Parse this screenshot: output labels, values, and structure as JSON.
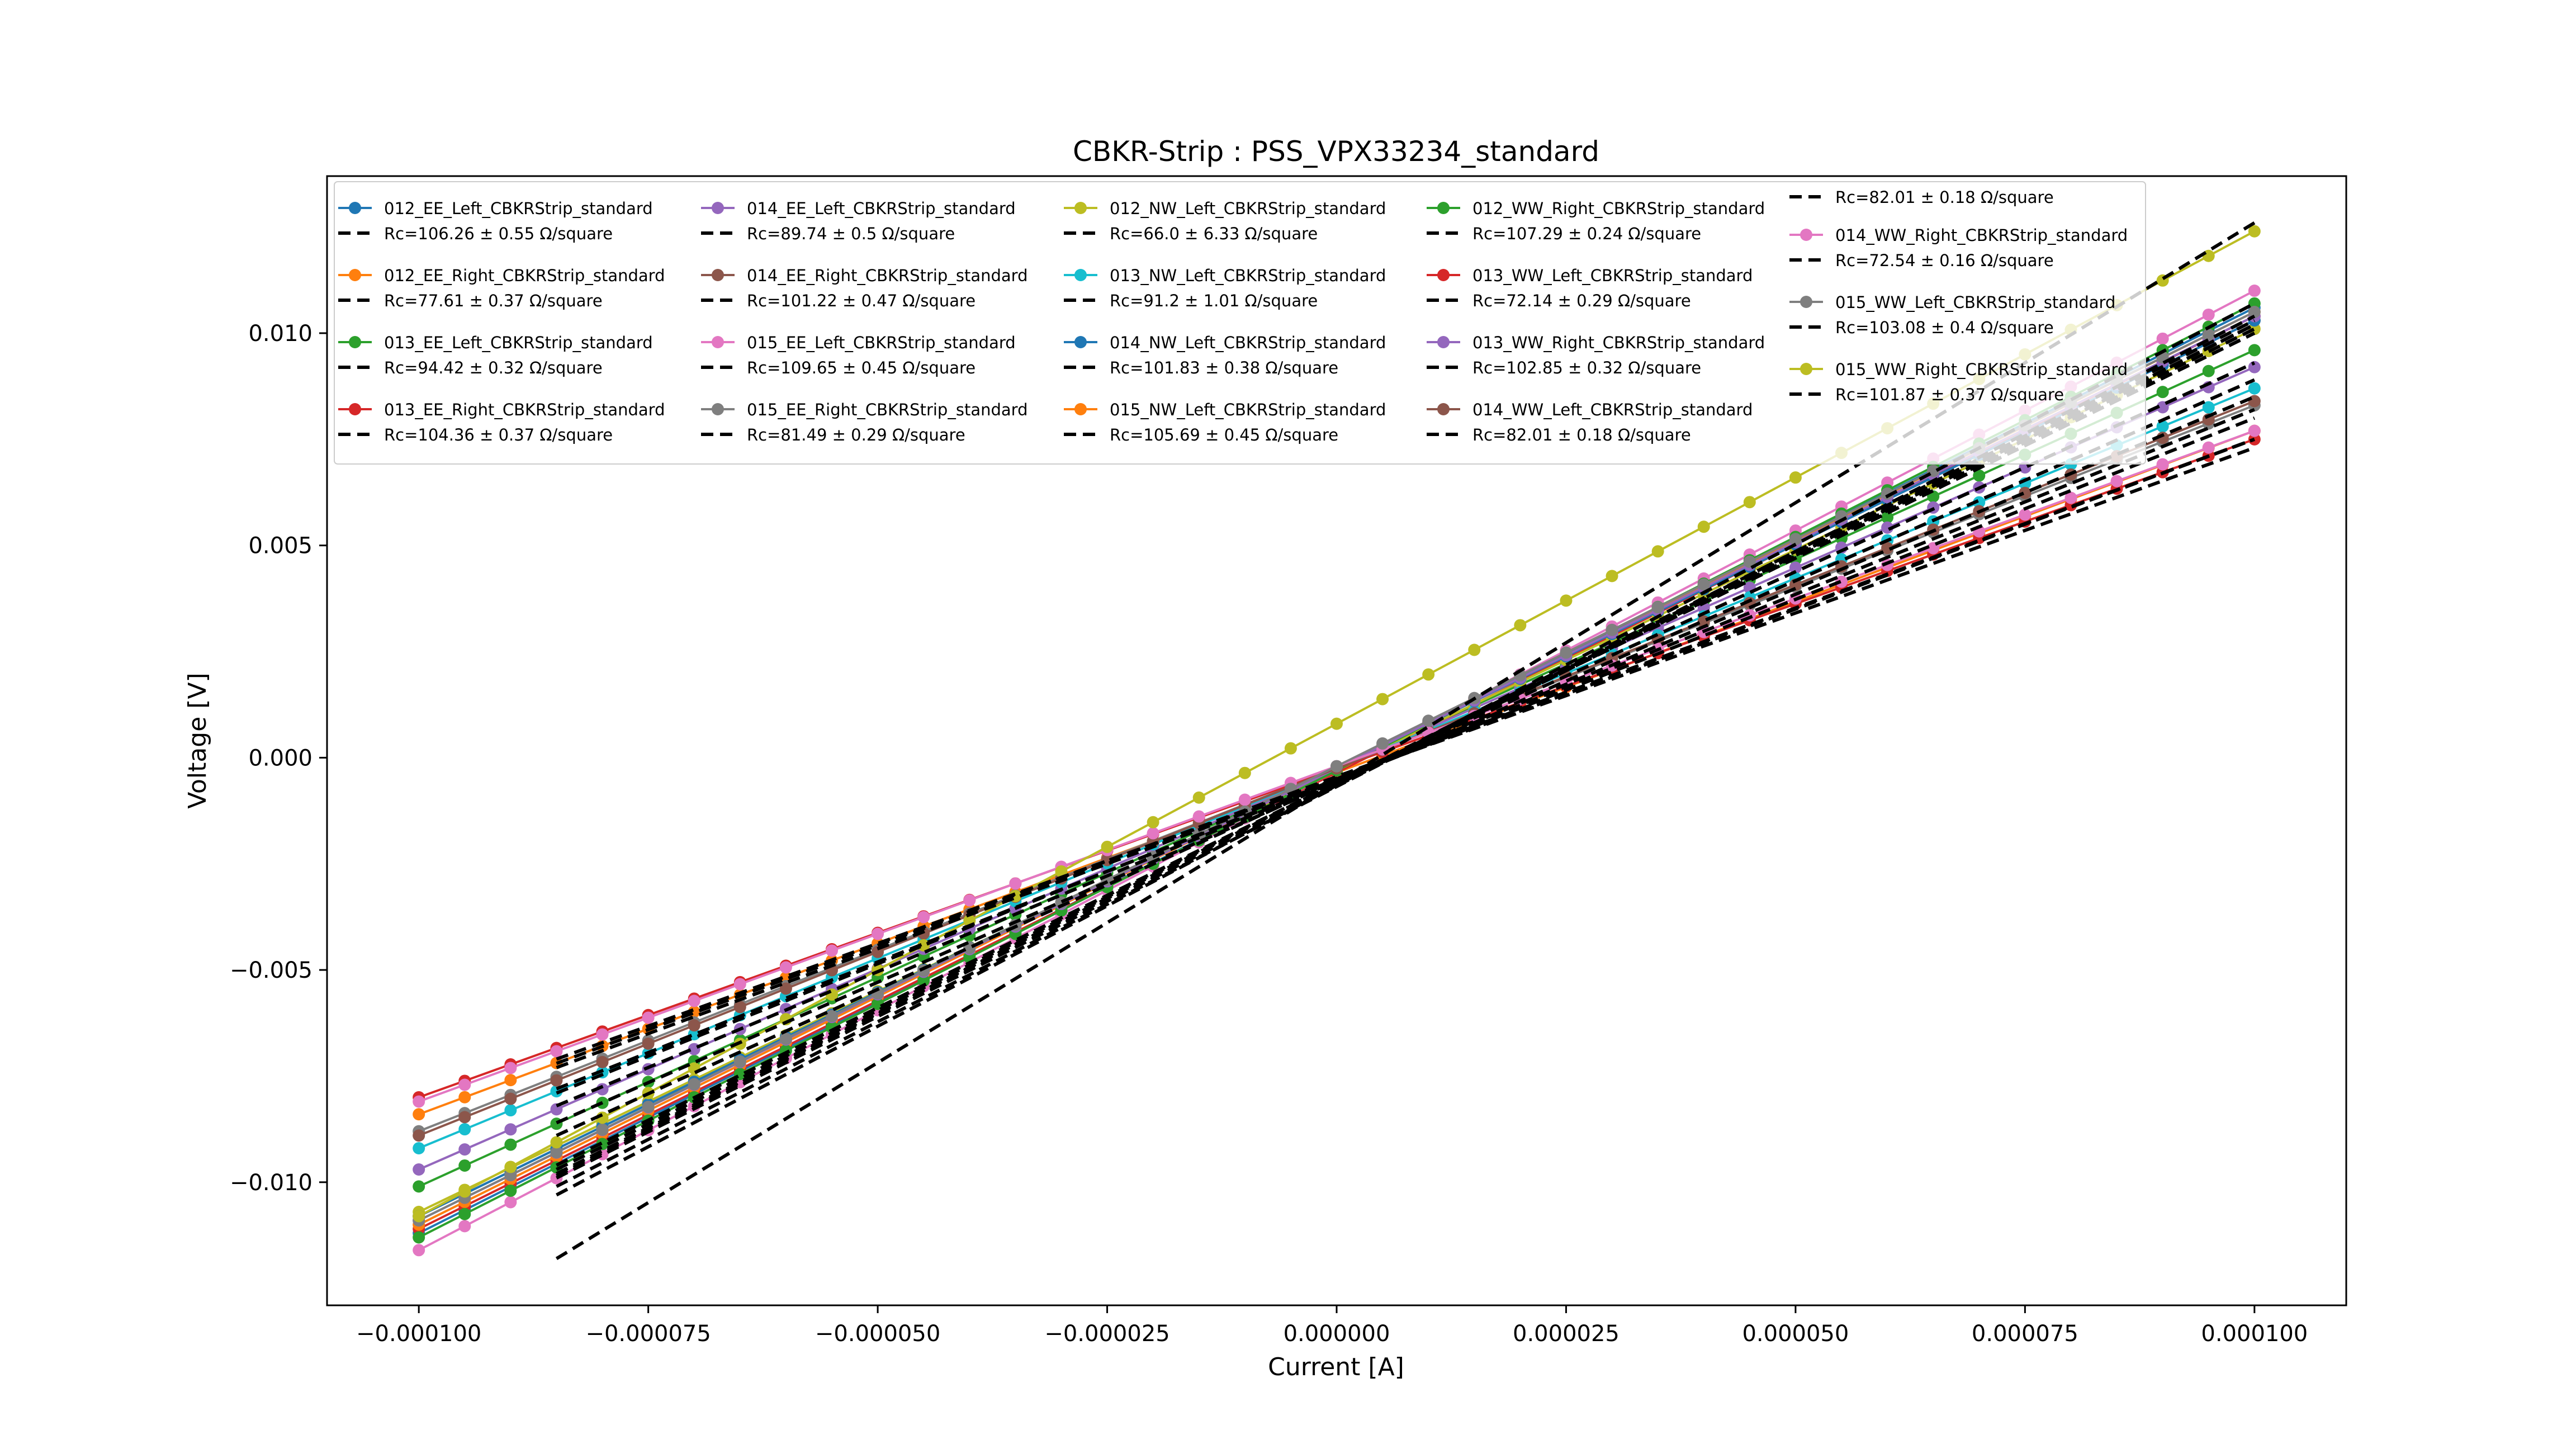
{
  "chart_data": {
    "type": "line",
    "title": "CBKR-Strip : PSS_VPX33234_standard",
    "xlabel": "Current [A]",
    "ylabel": "Voltage [V]",
    "xlim": [
      -0.00011,
      0.00011
    ],
    "ylim": [
      -0.0129,
      0.0137
    ],
    "x_ticks": [
      {
        "v": -0.0001,
        "label": "−0.000100"
      },
      {
        "v": -7.5e-05,
        "label": "−0.000075"
      },
      {
        "v": -5e-05,
        "label": "−0.000050"
      },
      {
        "v": -2.5e-05,
        "label": "−0.000025"
      },
      {
        "v": 0,
        "label": "0.000000"
      },
      {
        "v": 2.5e-05,
        "label": "0.000025"
      },
      {
        "v": 5e-05,
        "label": "0.000050"
      },
      {
        "v": 7.5e-05,
        "label": "0.000075"
      },
      {
        "v": 0.0001,
        "label": "0.000100"
      }
    ],
    "y_ticks": [
      {
        "v": -0.01,
        "label": "−0.010"
      },
      {
        "v": -0.005,
        "label": "−0.005"
      },
      {
        "v": 0,
        "label": "0.000"
      },
      {
        "v": 0.005,
        "label": "0.005"
      },
      {
        "v": 0.01,
        "label": "0.010"
      }
    ],
    "grid": false,
    "legend_position": "top",
    "data_x_range": [
      -0.0001,
      0.0001
    ],
    "data_step": 5e-06,
    "fit_x_range": [
      -8.5e-05,
      0.0001
    ],
    "series": [
      {
        "name": "012_EE_Left_CBKRStrip_standard",
        "fit_label": "Rc=106.26 ± 0.55 Ω/square",
        "color": "#1f77b4",
        "y_at_min": -0.0112,
        "y_at_max": 0.0106,
        "fit_at_min": -0.00985,
        "fit_at_max": 0.0103
      },
      {
        "name": "012_EE_Right_CBKRStrip_standard",
        "fit_label": "Rc=77.61 ± 0.37 Ω/square",
        "color": "#ff7f0e",
        "y_at_min": -0.0084,
        "y_at_max": 0.0077,
        "fit_at_min": -0.0073,
        "fit_at_max": 0.0075
      },
      {
        "name": "013_EE_Left_CBKRStrip_standard",
        "fit_label": "Rc=94.42 ± 0.32 Ω/square",
        "color": "#2ca02c",
        "y_at_min": -0.0101,
        "y_at_max": 0.0096,
        "fit_at_min": -0.0089,
        "fit_at_max": 0.0093
      },
      {
        "name": "013_EE_Right_CBKRStrip_standard",
        "fit_label": "Rc=104.36 ± 0.37 Ω/square",
        "color": "#d62728",
        "y_at_min": -0.0111,
        "y_at_max": 0.0104,
        "fit_at_min": -0.0098,
        "fit_at_max": 0.0102
      },
      {
        "name": "014_EE_Left_CBKRStrip_standard",
        "fit_label": "Rc=89.74 ± 0.5 Ω/square",
        "color": "#9467bd",
        "y_at_min": -0.0097,
        "y_at_max": 0.0092,
        "fit_at_min": -0.0086,
        "fit_at_max": 0.0089
      },
      {
        "name": "014_EE_Right_CBKRStrip_standard",
        "fit_label": "Rc=101.22 ± 0.47 Ω/square",
        "color": "#8c564b",
        "y_at_min": -0.0108,
        "y_at_max": 0.0103,
        "fit_at_min": -0.0096,
        "fit_at_max": 0.01
      },
      {
        "name": "015_EE_Left_CBKRStrip_standard",
        "fit_label": "Rc=109.65 ± 0.45 Ω/square",
        "color": "#e377c2",
        "y_at_min": -0.0116,
        "y_at_max": 0.011,
        "fit_at_min": -0.0103,
        "fit_at_max": 0.0107
      },
      {
        "name": "015_EE_Right_CBKRStrip_standard",
        "fit_label": "Rc=81.49 ± 0.29 Ω/square",
        "color": "#7f7f7f",
        "y_at_min": -0.0088,
        "y_at_max": 0.0083,
        "fit_at_min": -0.0078,
        "fit_at_max": 0.008
      },
      {
        "name": "012_NW_Left_CBKRStrip_standard",
        "fit_label": "Rc=66.0 ± 6.33 Ω/square",
        "color": "#bcbd22",
        "y_at_min": -0.0107,
        "y_at_max": 0.0101,
        "fit_at_min": -0.0099,
        "fit_at_max": 0.0102
      },
      {
        "name": "013_NW_Left_CBKRStrip_standard",
        "fit_label": "Rc=91.2 ± 1.01 Ω/square",
        "color": "#17becf",
        "y_at_min": -0.0092,
        "y_at_max": 0.0087,
        "fit_at_min": -0.0082,
        "fit_at_max": 0.0085
      },
      {
        "name": "014_NW_Left_CBKRStrip_standard",
        "fit_label": "Rc=101.83 ± 0.38 Ω/square",
        "color": "#1f77b4",
        "y_at_min": -0.0108,
        "y_at_max": 0.0103,
        "fit_at_min": -0.0096,
        "fit_at_max": 0.01
      },
      {
        "name": "015_NW_Left_CBKRStrip_standard",
        "fit_label": "Rc=105.69 ± 0.45 Ω/square",
        "color": "#ff7f0e",
        "y_at_min": -0.011,
        "y_at_max": 0.0105,
        "fit_at_min": -0.0098,
        "fit_at_max": 0.0102
      },
      {
        "name": "012_WW_Right_CBKRStrip_standard",
        "fit_label": "Rc=107.29 ± 0.24 Ω/square",
        "color": "#2ca02c",
        "y_at_min": -0.0113,
        "y_at_max": 0.0107,
        "fit_at_min": -0.0101,
        "fit_at_max": 0.0104
      },
      {
        "name": "013_WW_Left_CBKRStrip_standard",
        "fit_label": "Rc=72.14 ± 0.29 Ω/square",
        "color": "#d62728",
        "y_at_min": -0.008,
        "y_at_max": 0.0075,
        "fit_at_min": -0.0071,
        "fit_at_max": 0.0073
      },
      {
        "name": "013_WW_Right_CBKRStrip_standard",
        "fit_label": "Rc=102.85 ± 0.32 Ω/square",
        "color": "#9467bd",
        "y_at_min": -0.0109,
        "y_at_max": 0.0104,
        "fit_at_min": -0.0097,
        "fit_at_max": 0.0101
      },
      {
        "name": "014_WW_Left_CBKRStrip_standard",
        "fit_label": "Rc=82.01 ± 0.18 Ω/square",
        "color": "#8c564b",
        "y_at_min": -0.0089,
        "y_at_max": 0.0084,
        "fit_at_min": -0.0079,
        "fit_at_max": 0.0082
      },
      {
        "name": "014_WW_Right_CBKRStrip_standard",
        "fit_label": "Rc=72.54 ± 0.16 Ω/square",
        "color": "#e377c2",
        "y_at_min": -0.0081,
        "y_at_max": 0.0077,
        "fit_at_min": -0.0072,
        "fit_at_max": 0.0075
      },
      {
        "name": "015_WW_Left_CBKRStrip_standard",
        "fit_label": "Rc=103.08 ± 0.4 Ω/square",
        "color": "#7f7f7f",
        "y_at_min": -0.0109,
        "y_at_max": 0.0105,
        "fit_at_min": -0.0097,
        "fit_at_max": 0.0101
      },
      {
        "name": "015_WW_Right_CBKRStrip_standard",
        "fit_label": "Rc=101.87 ± 0.37 Ω/square",
        "color": "#bcbd22",
        "y_at_min": -0.0108,
        "y_at_max": 0.0124,
        "fit_at_min": -0.0118,
        "fit_at_max": 0.0126
      }
    ],
    "legend_layout": [
      [
        0,
        1,
        2,
        3
      ],
      [
        4,
        5,
        6,
        7
      ],
      [
        8,
        9,
        10,
        11
      ],
      [
        12,
        13,
        14,
        15
      ],
      [
        16,
        17,
        18
      ]
    ]
  }
}
